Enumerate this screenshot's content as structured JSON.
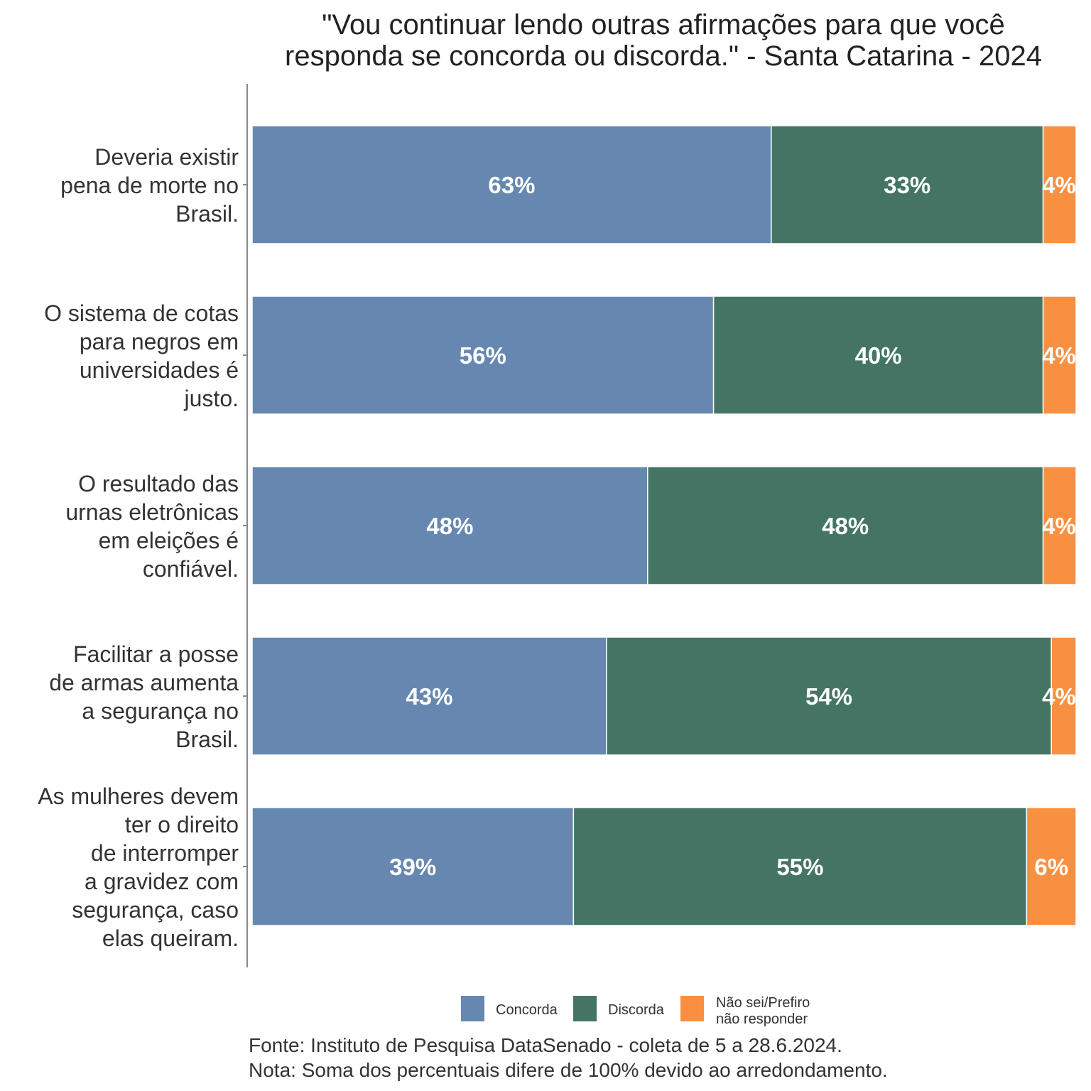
{
  "chart_data": {
    "type": "bar",
    "orientation": "horizontal",
    "stacked": true,
    "title": [
      "\"Vou continuar lendo outras afirmações para que você",
      "responda se concorda ou discorda.\" - Santa Catarina - 2024"
    ],
    "categories": [
      [
        "Deveria existir",
        "pena de morte no",
        "Brasil."
      ],
      [
        "O sistema de cotas",
        "para negros em",
        "universidades é",
        "justo."
      ],
      [
        "O resultado das",
        "urnas eletrônicas",
        "em eleições é",
        "confiável."
      ],
      [
        "Facilitar a posse",
        "de armas aumenta",
        "a segurança no",
        "Brasil."
      ],
      [
        "As mulheres devem",
        "ter o direito",
        "de interromper",
        "a gravidez com",
        "segurança, caso",
        "elas queiram."
      ]
    ],
    "series": [
      {
        "name": "Concorda",
        "color": "#6688b0",
        "values": [
          63,
          56,
          48,
          43,
          39
        ]
      },
      {
        "name": "Discorda",
        "color": "#447564",
        "values": [
          33,
          40,
          48,
          54,
          55
        ]
      },
      {
        "name": "Não sei/Prefiro não responder",
        "legend_lines": [
          "Não sei/Prefiro",
          "não responder"
        ],
        "color": "#f99041",
        "values": [
          4,
          4,
          4,
          4,
          6
        ]
      }
    ],
    "data_labels": [
      [
        "63%",
        "56%",
        "48%",
        "43%",
        "39%"
      ],
      [
        "33%",
        "40%",
        "48%",
        "54%",
        "55%"
      ],
      [
        "4%",
        "4%",
        "4%",
        "4%",
        "6%"
      ]
    ],
    "xlim": [
      0,
      100
    ],
    "legend_position": "bottom",
    "caption": [
      "Fonte: Instituto de Pesquisa DataSenado - coleta de 5 a 28.6.2024.",
      "Nota: Soma dos percentuais difere de 100% devido ao arredondamento."
    ]
  }
}
